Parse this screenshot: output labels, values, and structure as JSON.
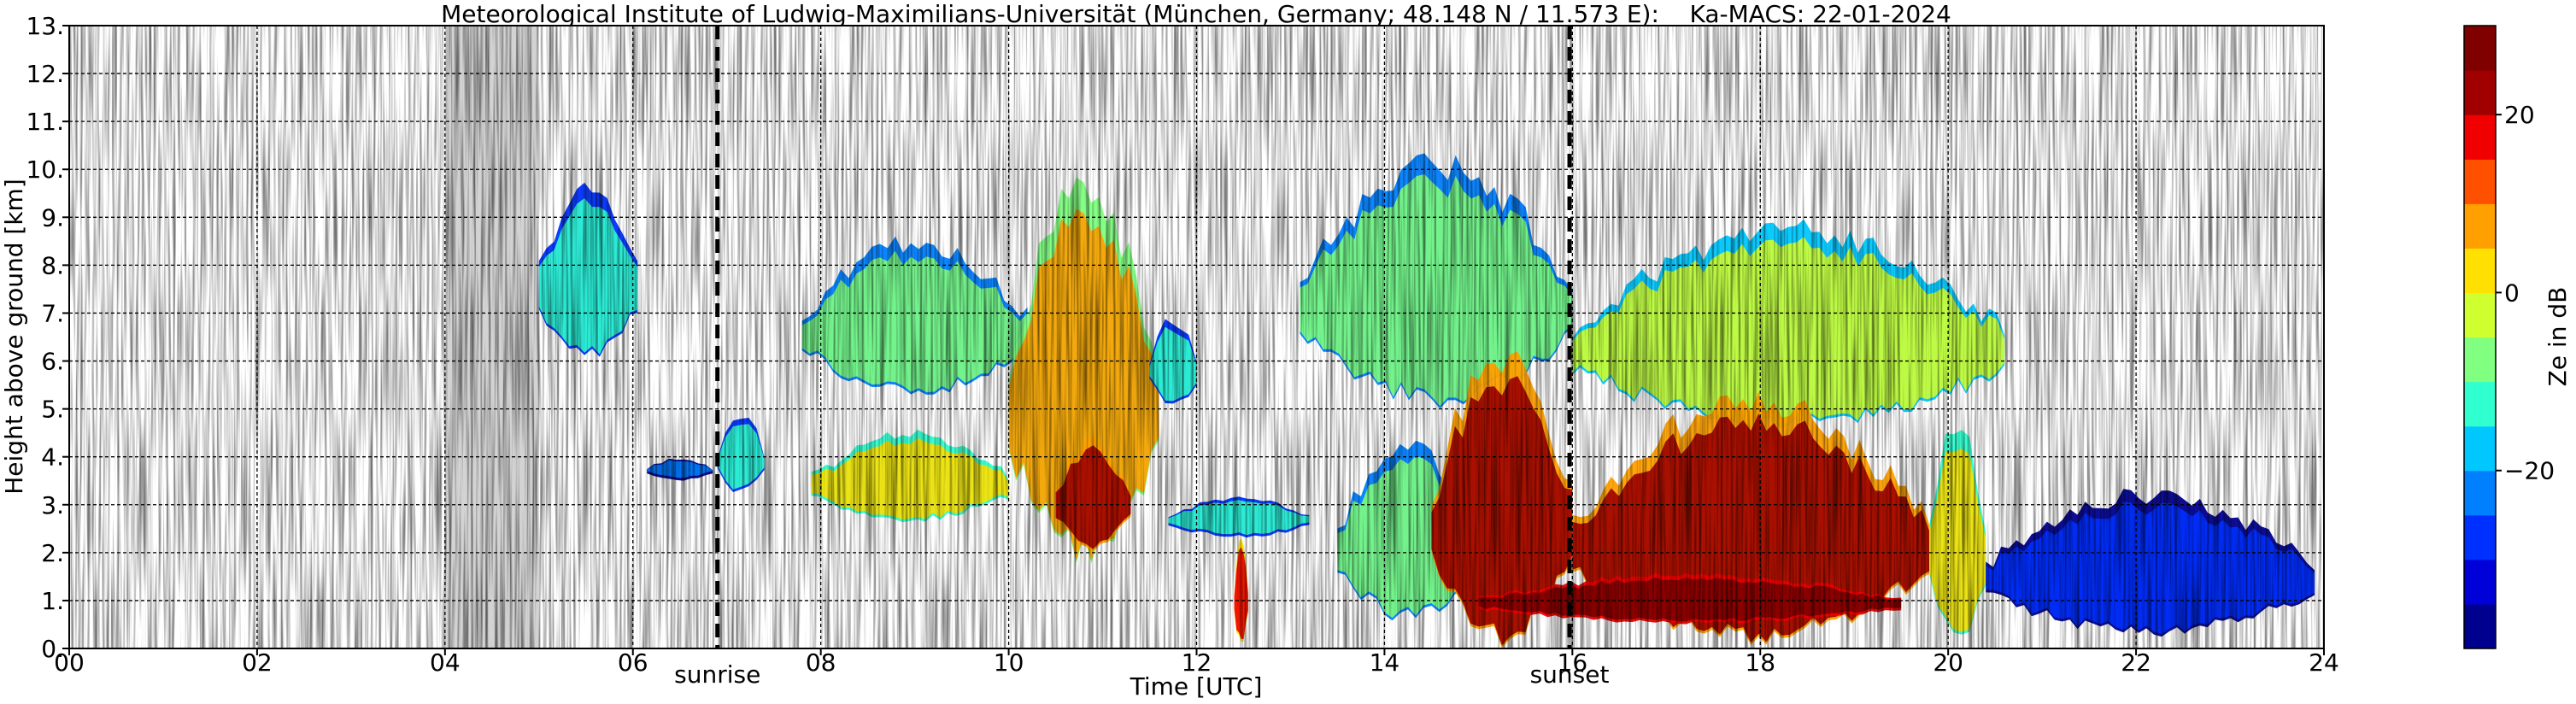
{
  "chart_data": {
    "type": "heatmap",
    "title": "Meteorological Institute of Ludwig-Maximilians-Universität (München, Germany; 48.148 N / 11.573 E):    Ka-MACS: 22-01-2024",
    "xlabel": "Time [UTC]",
    "ylabel": "Height above ground [km]",
    "xlim": [
      0,
      24
    ],
    "ylim": [
      0,
      13
    ],
    "x_ticks": [
      0,
      2,
      4,
      6,
      8,
      10,
      12,
      14,
      16,
      18,
      20,
      22,
      24
    ],
    "x_tick_labels": [
      "00",
      "02",
      "04",
      "06",
      "08",
      "10",
      "12",
      "14",
      "16",
      "18",
      "20",
      "22",
      "24"
    ],
    "y_ticks": [
      0,
      1,
      2,
      3,
      4,
      5,
      6,
      7,
      8,
      9,
      10,
      11,
      12,
      13
    ],
    "y_tick_labels": [
      "0.",
      "1.",
      "2.",
      "3.",
      "4.",
      "5.",
      "6.",
      "7.",
      "8.",
      "9.",
      "10.",
      "11.",
      "12.",
      "13."
    ],
    "grid": true,
    "no_data_interval": [
      4.0,
      5.0
    ],
    "events": [
      {
        "label": "sunrise",
        "x": 6.9
      },
      {
        "label": "sunset",
        "x": 15.97
      }
    ],
    "colorbar": {
      "label": "Ze in dB",
      "ticks": [
        20,
        0,
        -20
      ],
      "tick_labels": [
        "20",
        "0",
        "−20"
      ],
      "range": [
        -40,
        30
      ],
      "colors": [
        "#00008f",
        "#0000d8",
        "#0030ff",
        "#0080ff",
        "#00c8ff",
        "#30ffd0",
        "#80ff80",
        "#d0ff30",
        "#ffe000",
        "#ffa000",
        "#ff5000",
        "#f00000",
        "#a00000",
        "#800000"
      ]
    },
    "echo_regions": [
      {
        "t0": 5.0,
        "t1": 6.05,
        "h0": 6.0,
        "h1": 9.8,
        "ze": -15
      },
      {
        "t0": 6.15,
        "t1": 6.85,
        "h0": 3.5,
        "h1": 4.0,
        "ze": -25
      },
      {
        "t0": 6.9,
        "t1": 7.4,
        "h0": 3.2,
        "h1": 5.0,
        "ze": -15
      },
      {
        "t0": 7.8,
        "t1": 10.2,
        "h0": 5.2,
        "h1": 8.7,
        "ze": -10
      },
      {
        "t0": 7.9,
        "t1": 10.0,
        "h0": 2.6,
        "h1": 4.6,
        "ze": 0
      },
      {
        "t0": 10.0,
        "t1": 11.6,
        "h0": 1.7,
        "h1": 10.2,
        "ze": 5
      },
      {
        "t0": 10.5,
        "t1": 11.3,
        "h0": 2.0,
        "h1": 4.5,
        "ze": 20
      },
      {
        "t0": 11.5,
        "t1": 12.0,
        "h0": 5.0,
        "h1": 7.0,
        "ze": -15
      },
      {
        "t0": 11.7,
        "t1": 13.2,
        "h0": 2.3,
        "h1": 3.2,
        "ze": -15
      },
      {
        "t0": 12.4,
        "t1": 12.55,
        "h0": 0.0,
        "h1": 2.5,
        "ze": 15
      },
      {
        "t0": 13.1,
        "t1": 16.0,
        "h0": 5.0,
        "h1": 10.4,
        "ze": -10
      },
      {
        "t0": 13.5,
        "t1": 15.0,
        "h0": 0.5,
        "h1": 4.5,
        "ze": -10
      },
      {
        "t0": 14.5,
        "t1": 16.0,
        "h0": 0.0,
        "h1": 6.5,
        "ze": 20
      },
      {
        "t0": 16.0,
        "t1": 20.6,
        "h0": 4.5,
        "h1": 9.0,
        "ze": -5
      },
      {
        "t0": 16.0,
        "t1": 19.8,
        "h0": 0.0,
        "h1": 5.5,
        "ze": 20
      },
      {
        "t0": 15.0,
        "t1": 19.5,
        "h0": 0.5,
        "h1": 1.6,
        "ze": 28
      },
      {
        "t0": 19.8,
        "t1": 20.4,
        "h0": 0.0,
        "h1": 5.0,
        "ze": 0
      },
      {
        "t0": 20.4,
        "t1": 23.9,
        "h0": 0.2,
        "h1": 3.4,
        "ze": -30
      }
    ]
  }
}
